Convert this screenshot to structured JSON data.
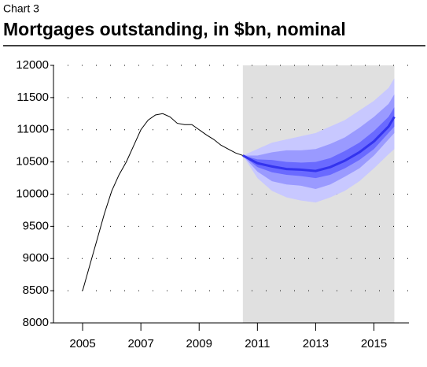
{
  "chart_data": {
    "type": "fan",
    "label": "Chart 3",
    "title": "Mortgages outstanding, in $bn, nominal",
    "x": [
      2005.0,
      2005.25,
      2005.5,
      2005.75,
      2006.0,
      2006.25,
      2006.5,
      2006.75,
      2007.0,
      2007.25,
      2007.5,
      2007.75,
      2008.0,
      2008.25,
      2008.5,
      2008.75,
      2009.0,
      2009.25,
      2009.5,
      2009.75,
      2010.0,
      2010.25,
      2010.5
    ],
    "values": [
      8500,
      8900,
      9300,
      9700,
      10050,
      10300,
      10500,
      10750,
      11000,
      11150,
      11230,
      11250,
      11200,
      11100,
      11080,
      11080,
      11000,
      10920,
      10850,
      10760,
      10700,
      10640,
      10600
    ],
    "color": "#000000",
    "fan": {
      "x": [
        2010.5,
        2011,
        2011.5,
        2012,
        2012.5,
        2013,
        2013.5,
        2014,
        2014.5,
        2015,
        2015.5,
        2015.7
      ],
      "central": [
        10600,
        10480,
        10430,
        10390,
        10380,
        10360,
        10420,
        10520,
        10650,
        10820,
        11050,
        11200
      ],
      "central_color": "#3333ee",
      "bands": [
        {
          "color": "#c8c8ff",
          "lower": [
            10600,
            10250,
            10050,
            9950,
            9900,
            9870,
            9950,
            10050,
            10200,
            10400,
            10620,
            10700
          ],
          "upper": [
            10600,
            10700,
            10800,
            10850,
            10900,
            10950,
            11050,
            11150,
            11300,
            11450,
            11650,
            11800
          ]
        },
        {
          "color": "#9a9aff",
          "lower": [
            10600,
            10350,
            10200,
            10150,
            10130,
            10080,
            10150,
            10270,
            10400,
            10600,
            10850,
            10950
          ],
          "upper": [
            10600,
            10600,
            10650,
            10680,
            10680,
            10700,
            10780,
            10880,
            11030,
            11200,
            11400,
            11550
          ]
        },
        {
          "color": "#6a6aff",
          "lower": [
            10600,
            10420,
            10340,
            10300,
            10280,
            10250,
            10300,
            10400,
            10530,
            10700,
            10950,
            11050
          ],
          "upper": [
            10600,
            10540,
            10530,
            10500,
            10490,
            10500,
            10560,
            10670,
            10800,
            10980,
            11200,
            11350
          ]
        }
      ]
    },
    "shade": [
      2010.5,
      2015.7
    ],
    "shade_color": "#e0e0e0",
    "xlim": [
      2004,
      2016.2
    ],
    "xticks": [
      2005,
      2007,
      2009,
      2011,
      2013,
      2015
    ],
    "ylim": [
      8000,
      12000
    ],
    "yticks": [
      8000,
      8500,
      9000,
      9500,
      10000,
      10500,
      11000,
      11500,
      12000
    ],
    "grid": true
  }
}
